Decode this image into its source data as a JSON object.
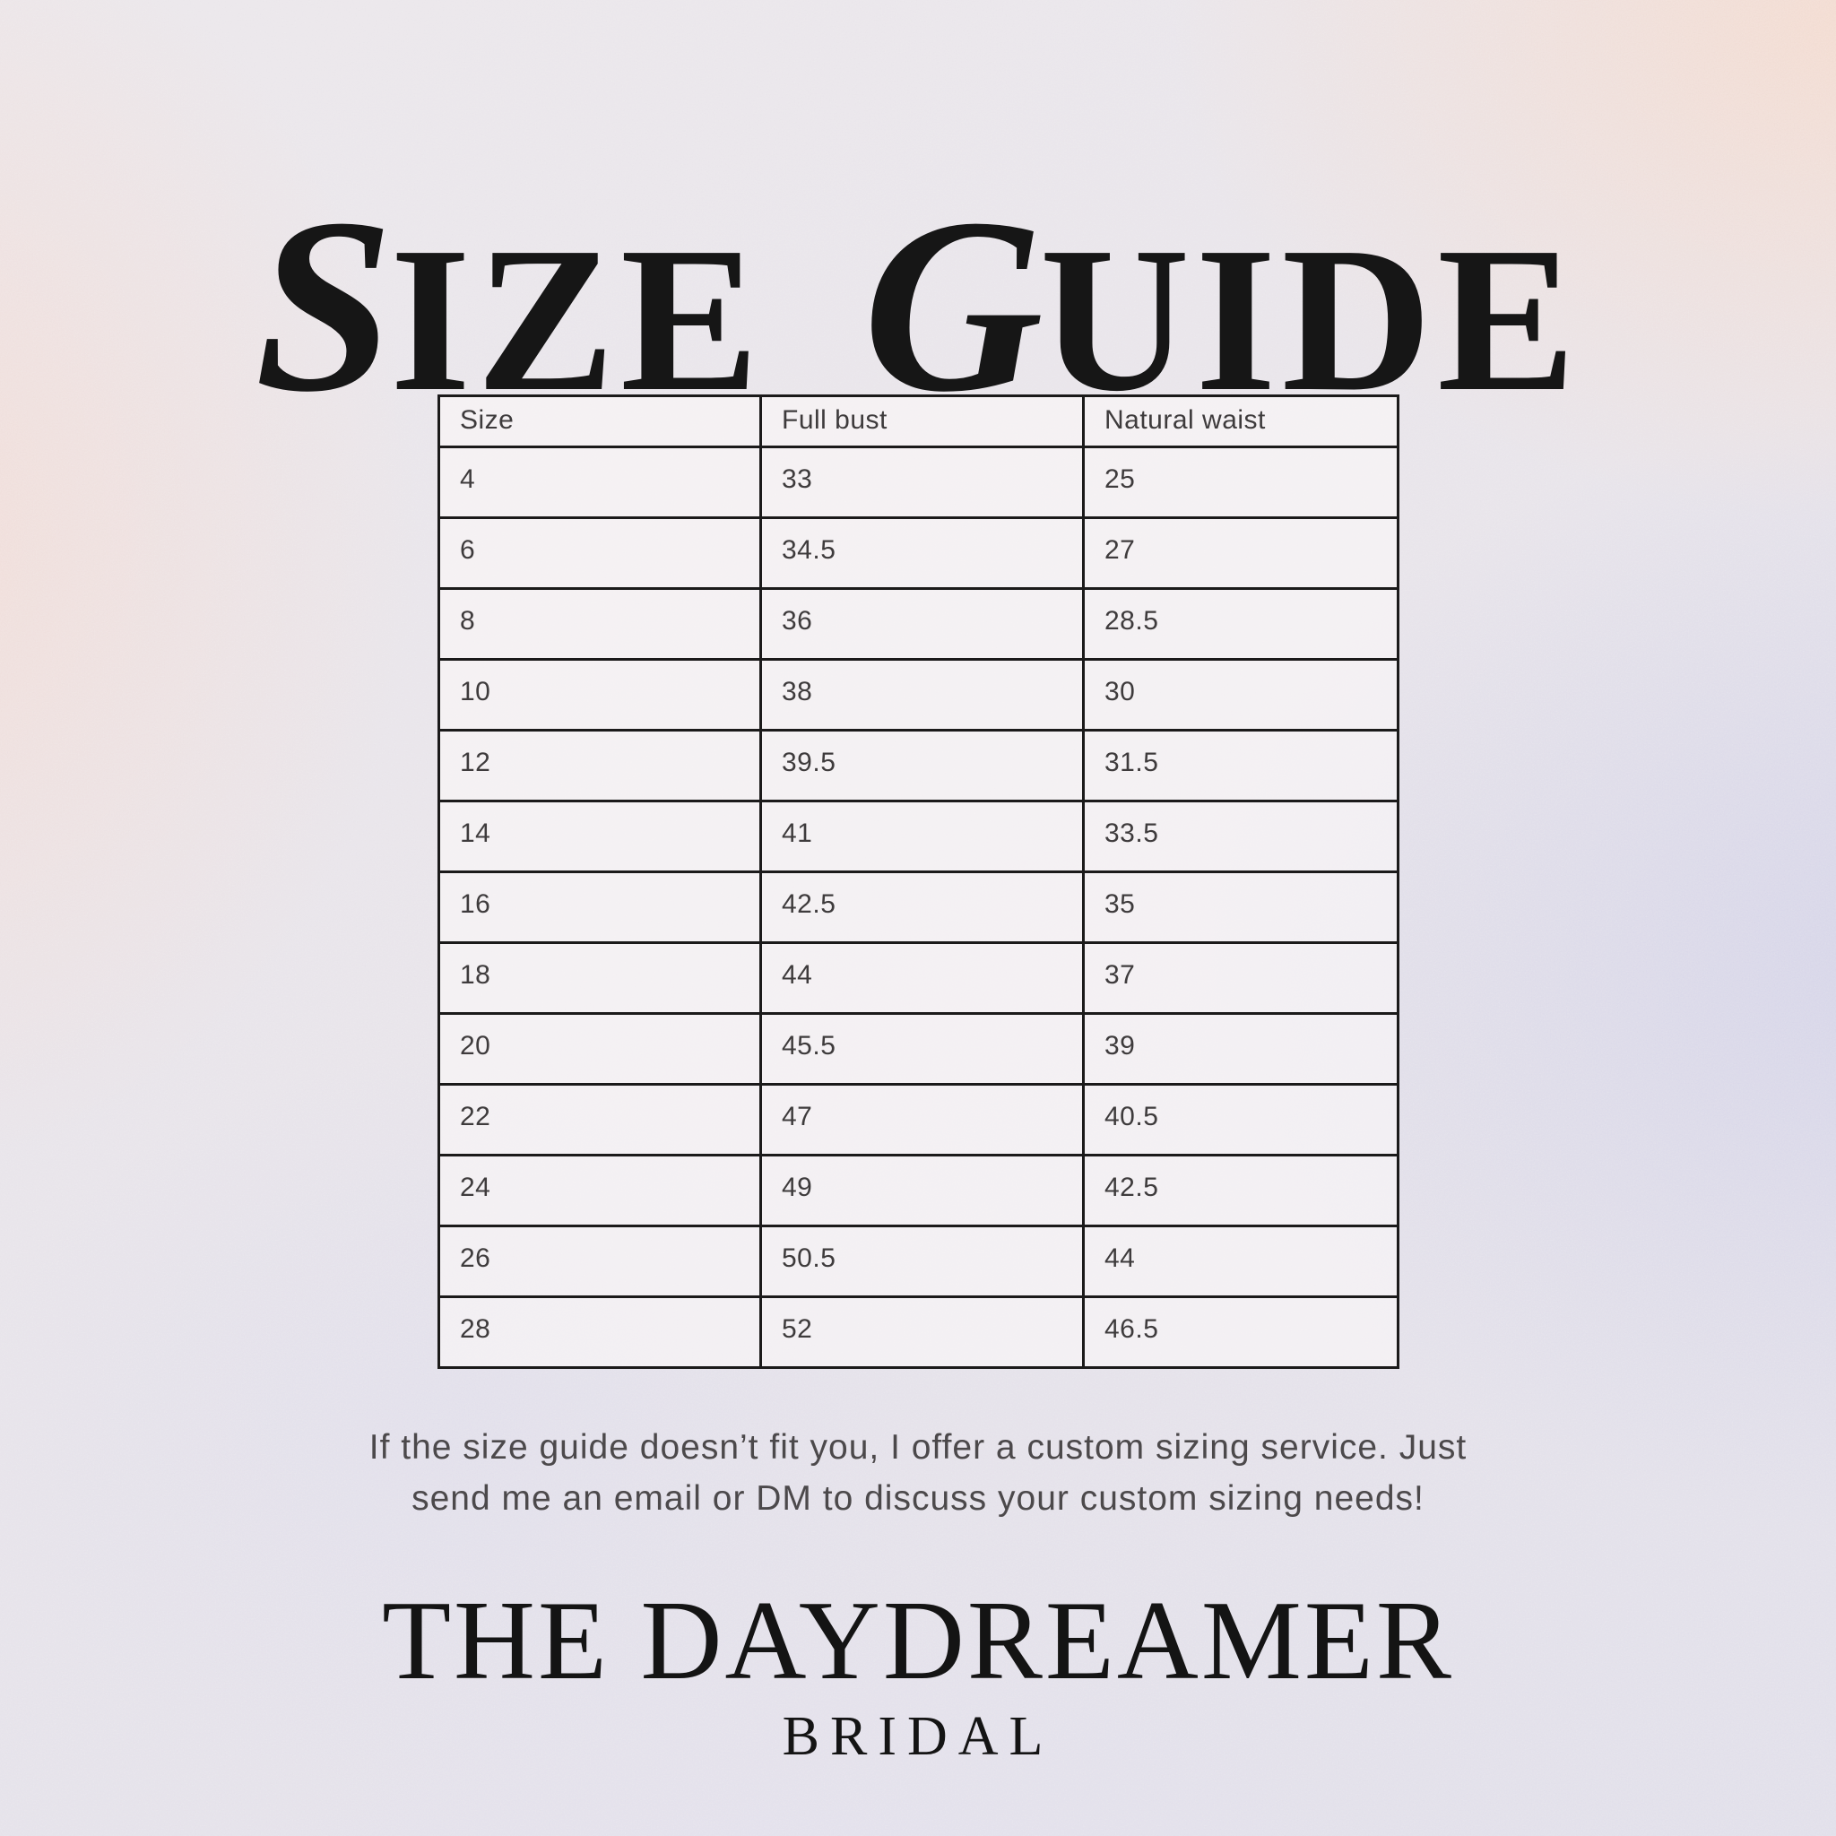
{
  "title": {
    "word1_initial": "S",
    "word1_rest": "IZE",
    "word2_initial": "G",
    "word2_rest": "UIDE"
  },
  "table": {
    "columns": [
      "Size",
      "Full bust",
      "Natural waist"
    ],
    "rows": [
      [
        "4",
        "33",
        "25"
      ],
      [
        "6",
        "34.5",
        "27"
      ],
      [
        "8",
        "36",
        "28.5"
      ],
      [
        "10",
        "38",
        "30"
      ],
      [
        "12",
        "39.5",
        "31.5"
      ],
      [
        "14",
        "41",
        "33.5"
      ],
      [
        "16",
        "42.5",
        "35"
      ],
      [
        "18",
        "44",
        "37"
      ],
      [
        "20",
        "45.5",
        "39"
      ],
      [
        "22",
        "47",
        "40.5"
      ],
      [
        "24",
        "49",
        "42.5"
      ],
      [
        "26",
        "50.5",
        "44"
      ],
      [
        "28",
        "52",
        "46.5"
      ]
    ]
  },
  "note": {
    "line1": "If the size guide doesn’t fit you, I offer a custom sizing service. Just",
    "line2": "send me an email or DM to discuss your custom sizing needs!"
  },
  "brand": {
    "name": "THE DAYDREAMER",
    "subtitle": "BRIDAL"
  },
  "colors": {
    "ink": "#161616",
    "table_border": "#1b1a1a",
    "cell_fill": "#faf7f6",
    "body_text_grey": "#4c494b",
    "table_text_grey": "#3e3b3c",
    "bg_lavender": "#e2dfe9",
    "bg_peach": "#f2dcd3",
    "bg_periwinkle": "#d3d2e7"
  }
}
